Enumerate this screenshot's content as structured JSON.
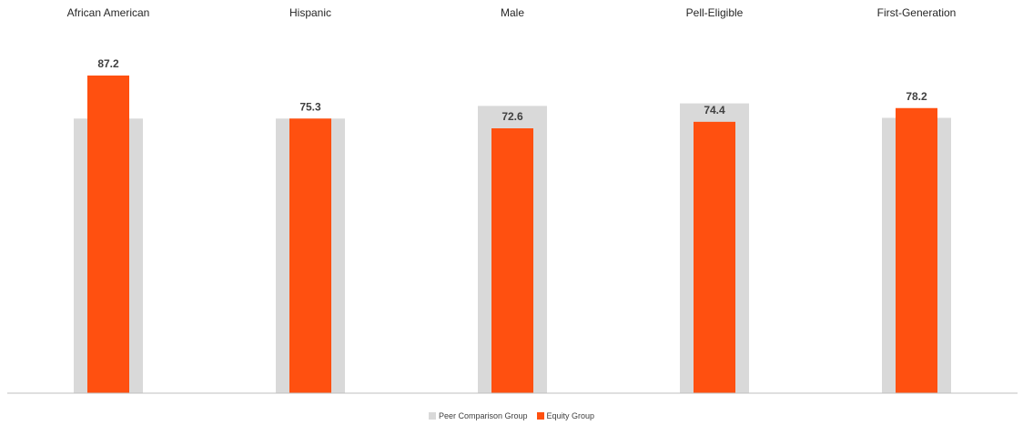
{
  "chart_data": {
    "type": "bar",
    "categories": [
      "African American",
      "Hispanic",
      "Male",
      "Pell-Eligible",
      "First-Generation"
    ],
    "series": [
      {
        "name": "Peer Comparison Group",
        "values": [
          75.3,
          75.3,
          78.8,
          79.5,
          75.5
        ],
        "color": "#d9d9d9"
      },
      {
        "name": "Equity Group",
        "values": [
          87.2,
          75.3,
          72.6,
          74.4,
          78.2
        ],
        "color": "#ff5010"
      }
    ],
    "data_labels": [
      "87.2",
      "75.3",
      "72.6",
      "74.4",
      "78.2"
    ],
    "ylim": [
      0,
      100
    ],
    "category_labels_position": "top",
    "legend_position": "bottom",
    "grid": false
  }
}
